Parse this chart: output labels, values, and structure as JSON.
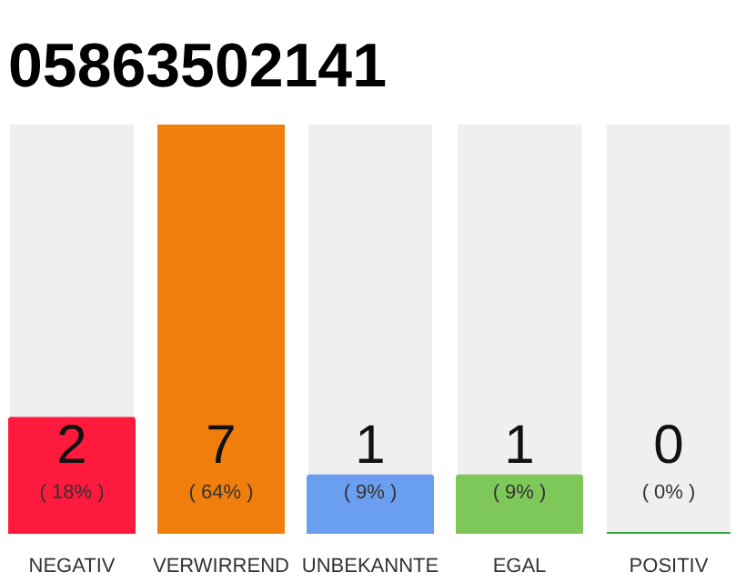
{
  "chart_data": {
    "type": "bar",
    "title": "05863502141",
    "categories": [
      "NEGATIV",
      "VERWIRREND",
      "UNBEKANNTE",
      "EGAL",
      "POSITIV"
    ],
    "values": [
      18,
      64,
      9,
      9,
      0
    ],
    "colors": [
      "#fe1a3c",
      "#f07e0c",
      "#6a9fef",
      "#7ec85a",
      "#33aa44"
    ],
    "value_labels": [
      "( 18% )",
      "( 64% )",
      "( 9% )",
      "( 9% )",
      "( 0% )"
    ],
    "annotations": [
      "2",
      "7",
      "1",
      "1",
      "0"
    ],
    "grid": false
  }
}
